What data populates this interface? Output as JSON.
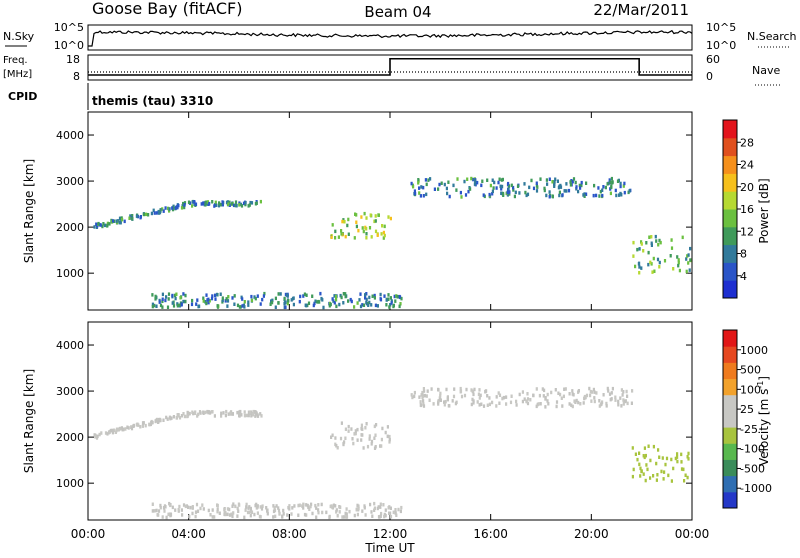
{
  "header": {
    "station": "Goose Bay (fitACF)",
    "beam": "Beam 04",
    "date": "22/Mar/2011"
  },
  "noise_panel": {
    "left_label": "N.Sky",
    "left_ticks": [
      "10^5",
      "10^0"
    ],
    "right_ticks": [
      "10^5",
      "10^0"
    ],
    "right_label": "N.Search"
  },
  "freq_panel": {
    "left_label_top": "Freq.",
    "left_label_unit": "[MHz]",
    "left_ticks": [
      "18",
      "8"
    ],
    "right_ticks": [
      "60",
      "0"
    ],
    "right_label": "Nave",
    "nave_values": [
      {
        "t_start": 0,
        "t_end": 12,
        "level": 0.2
      },
      {
        "t_start": 12,
        "t_end": 21.9,
        "level": 0.85
      },
      {
        "t_start": 21.9,
        "t_end": 24,
        "level": 0.2
      }
    ]
  },
  "cpid_panel": {
    "label": "CPID",
    "mode": "themis (tau) 3310"
  },
  "colors": {
    "power_scale": [
      "#1e2fd1",
      "#2a55c8",
      "#317a9b",
      "#3f9a5a",
      "#6bc040",
      "#b6d932",
      "#f6c01c",
      "#f5901c",
      "#e0501e",
      "#e3141c"
    ],
    "velocity_scale": [
      "#2438c8",
      "#2f6eb2",
      "#3a8c5a",
      "#58b84e",
      "#a8c43e",
      "#c8c8c4",
      "#c8c8c4",
      "#f2a22c",
      "#ef7b1e",
      "#e64820",
      "#e11616"
    ],
    "ground_scatter_grey": "#c3c3c0"
  },
  "chart_data": [
    {
      "type": "heatmap",
      "title": "",
      "xlabel": "",
      "ylabel": "Slant Range [km]",
      "x_ticks": [
        "00:00",
        "04:00",
        "08:00",
        "12:00",
        "16:00",
        "20:00",
        "00:00"
      ],
      "xlim": [
        0,
        24
      ],
      "y_ticks": [
        "4000",
        "3000",
        "2000",
        "1000"
      ],
      "ylim": [
        200,
        4500
      ],
      "colorbar": {
        "label": "Power [dB]",
        "ticks": [
          "28",
          "24",
          "20",
          "16",
          "12",
          "8",
          "4"
        ],
        "range": [
          0,
          30
        ]
      },
      "clusters": [
        {
          "t0": 0.2,
          "t1": 6.9,
          "r0": 1950,
          "r1": 2050,
          "rise_to": 2550,
          "rise_end": 4.0,
          "value": 8
        },
        {
          "t0": 9.6,
          "t1": 12.0,
          "r0": 1750,
          "r1": 2300,
          "value": 16
        },
        {
          "t0": 12.8,
          "t1": 21.6,
          "r0": 2650,
          "r1": 3050,
          "value": 8
        },
        {
          "t0": 21.6,
          "t1": 24.0,
          "r0": 1000,
          "r1": 1800,
          "value": 12
        },
        {
          "t0": 2.5,
          "t1": 12.5,
          "r0": 250,
          "r1": 550,
          "value": 8
        }
      ]
    },
    {
      "type": "heatmap",
      "title": "",
      "xlabel": "Time UT",
      "ylabel": "Slant Range [km]",
      "x_ticks": [
        "00:00",
        "04:00",
        "08:00",
        "12:00",
        "16:00",
        "20:00",
        "00:00"
      ],
      "xlim": [
        0,
        24
      ],
      "y_ticks": [
        "4000",
        "3000",
        "2000",
        "1000"
      ],
      "ylim": [
        200,
        4500
      ],
      "colorbar": {
        "label": "Velocity [m s",
        "label_superscript": "-1",
        "label_suffix": "]",
        "ticks": [
          "1000",
          "500",
          "100",
          "25",
          "-25",
          "-100",
          "-500",
          "-1000"
        ],
        "range": [
          -1000,
          1000
        ]
      },
      "clusters": [
        {
          "t0": 0.2,
          "t1": 6.9,
          "r0": 1950,
          "r1": 2050,
          "rise_to": 2550,
          "rise_end": 4.0,
          "value": 0
        },
        {
          "t0": 9.6,
          "t1": 12.0,
          "r0": 1750,
          "r1": 2300,
          "value": 0
        },
        {
          "t0": 12.8,
          "t1": 21.6,
          "r0": 2650,
          "r1": 3050,
          "value": 0
        },
        {
          "t0": 21.6,
          "t1": 24.0,
          "r0": 1000,
          "r1": 1800,
          "value": -150
        },
        {
          "t0": 2.5,
          "t1": 12.5,
          "r0": 250,
          "r1": 550,
          "value": 0
        }
      ]
    }
  ]
}
